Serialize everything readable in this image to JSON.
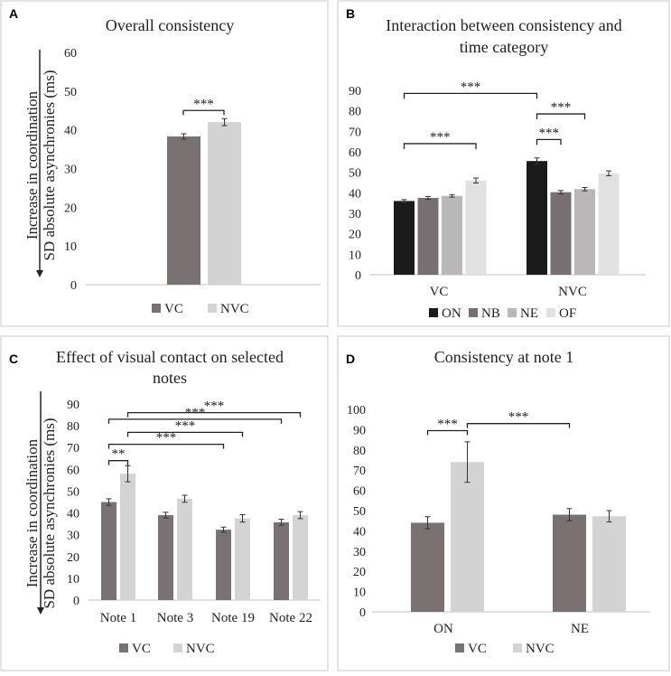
{
  "colors": {
    "vc": "#7a7172",
    "nvc": "#d4d3d3",
    "on": "#1b1b1b",
    "nb": "#787070",
    "ne": "#b9b7b7",
    "of": "#e2e0e1",
    "border": "#c8c8c8",
    "axis": "#bfbfbf",
    "text": "#222222"
  },
  "shared": {
    "ylabel_line1": "Increase in coordination",
    "ylabel_line2": "SD absolute asynchronies (ms)"
  },
  "chart_data": [
    {
      "panel": "A",
      "type": "bar",
      "title": "Overall consistency",
      "categories": [
        ""
      ],
      "series": [
        {
          "name": "VC",
          "values": [
            38.3
          ],
          "errors": [
            0.7
          ]
        },
        {
          "name": "NVC",
          "values": [
            42.0
          ],
          "errors": [
            0.9
          ]
        }
      ],
      "ylim": [
        0,
        60
      ],
      "yticks": [
        "0",
        "10",
        "20",
        "30",
        "40",
        "50",
        "60"
      ],
      "legend": [
        "VC",
        "NVC"
      ],
      "legend_position": "bottom",
      "significance": [
        {
          "label": "***",
          "level": 45
        }
      ]
    },
    {
      "panel": "B",
      "type": "bar",
      "title_line1": "Interaction between consistency and",
      "title_line2": "time category",
      "categories": [
        "VC",
        "NVC"
      ],
      "series": [
        {
          "name": "ON",
          "values": [
            36.0,
            55.5
          ],
          "errors": [
            0.7,
            1.5
          ]
        },
        {
          "name": "NB",
          "values": [
            37.5,
            40.3
          ],
          "errors": [
            0.7,
            0.8
          ]
        },
        {
          "name": "NE",
          "values": [
            38.5,
            41.8
          ],
          "errors": [
            0.6,
            0.8
          ]
        },
        {
          "name": "OF",
          "values": [
            46.0,
            49.5
          ],
          "errors": [
            1.2,
            1.2
          ]
        }
      ],
      "ylim": [
        0,
        90
      ],
      "yticks": [
        "0",
        "10",
        "20",
        "30",
        "40",
        "50",
        "60",
        "70",
        "80",
        "90"
      ],
      "legend": [
        "ON",
        "NB",
        "NE",
        "OF"
      ],
      "legend_position": "bottom",
      "significance": [
        {
          "label": "***",
          "level": 88.5
        },
        {
          "label": "***",
          "level": 78.5
        },
        {
          "label": "***",
          "level": 66
        },
        {
          "label": "***",
          "level": 64
        }
      ]
    },
    {
      "panel": "C",
      "type": "bar",
      "title_line1": "Effect of visual contact on selected",
      "title_line2": "notes",
      "categories": [
        "Note 1",
        "Note 3",
        "Note 19",
        "Note 22"
      ],
      "series": [
        {
          "name": "VC",
          "values": [
            45.0,
            39.0,
            32.3,
            35.7
          ],
          "errors": [
            1.5,
            1.3,
            1.2,
            1.4
          ]
        },
        {
          "name": "NVC",
          "values": [
            58.0,
            46.5,
            37.5,
            39.0
          ],
          "errors": [
            3.7,
            1.6,
            1.7,
            1.6
          ]
        }
      ],
      "ylim": [
        0,
        90
      ],
      "yticks": [
        "0",
        "10",
        "20",
        "30",
        "40",
        "50",
        "60",
        "70",
        "80",
        "90"
      ],
      "legend": [
        "VC",
        "NVC"
      ],
      "legend_position": "bottom",
      "significance": [
        {
          "label": "**",
          "level": 64
        },
        {
          "label": "***",
          "level": 77
        },
        {
          "label": "***",
          "level": 71.5
        },
        {
          "label": "***",
          "level": 86
        },
        {
          "label": "***",
          "level": 83
        }
      ]
    },
    {
      "panel": "D",
      "type": "bar",
      "title": "Consistency at note 1",
      "categories": [
        "ON",
        "NE"
      ],
      "series": [
        {
          "name": "VC",
          "values": [
            44.0,
            48.0
          ],
          "errors": [
            3.0,
            3.0
          ]
        },
        {
          "name": "NVC",
          "values": [
            74.0,
            47.2
          ],
          "errors": [
            10.0,
            2.8
          ]
        }
      ],
      "ylim": [
        0,
        100
      ],
      "yticks": [
        "0",
        "10",
        "20",
        "30",
        "40",
        "50",
        "60",
        "70",
        "80",
        "90",
        "100"
      ],
      "legend": [
        "VC",
        "NVC"
      ],
      "legend_position": "bottom",
      "significance": [
        {
          "label": "***",
          "level": 89.5
        },
        {
          "label": "***",
          "level": 93
        }
      ]
    }
  ]
}
